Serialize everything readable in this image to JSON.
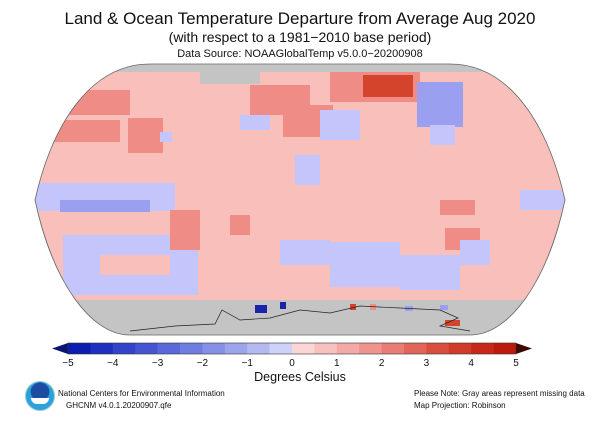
{
  "title": "Land & Ocean Temperature Departure from Average Aug 2020",
  "subtitle": "(with respect to a 1981−2010 base period)",
  "source": "Data Source: NOAAGlobalTemp v5.0.0−20200908",
  "map": {
    "projection_note": "Map Projection: Robinson",
    "missing_note": "Please Note: Gray areas represent missing data",
    "colors": {
      "missing": "#c4c4c4",
      "slight_warm": "#f8bfbb",
      "warm": "#ee8c85",
      "hot": "#d4442d",
      "cool": "#c4c6fb",
      "cold": "#9aa0ef",
      "very_cold": "#1a24a8"
    }
  },
  "colorbar": {
    "ticks": [
      "−5",
      "−4",
      "−3",
      "−2",
      "−1",
      "0",
      "1",
      "2",
      "3",
      "4",
      "5"
    ],
    "label": "Degrees Celsius",
    "min": -5,
    "max": 5,
    "colors": [
      "#0b1cb0",
      "#1f30c0",
      "#3344c9",
      "#4555d2",
      "#5a68da",
      "#6f7ce0",
      "#8590e6",
      "#9ca5ec",
      "#b3baf2",
      "#cfd2f8",
      "#fbd6d6",
      "#f8c1c0",
      "#f3aaa7",
      "#ee938e",
      "#e97c74",
      "#e2655a",
      "#da4e40",
      "#d23a2a",
      "#c8281a",
      "#bb1a0c"
    ],
    "low_arrow": "#0a1670",
    "high_arrow": "#3d0905"
  },
  "footer": {
    "org": "National Centers for Environmental Information",
    "dataset": "GHCNM v4.0.1.20200907.qfe"
  }
}
